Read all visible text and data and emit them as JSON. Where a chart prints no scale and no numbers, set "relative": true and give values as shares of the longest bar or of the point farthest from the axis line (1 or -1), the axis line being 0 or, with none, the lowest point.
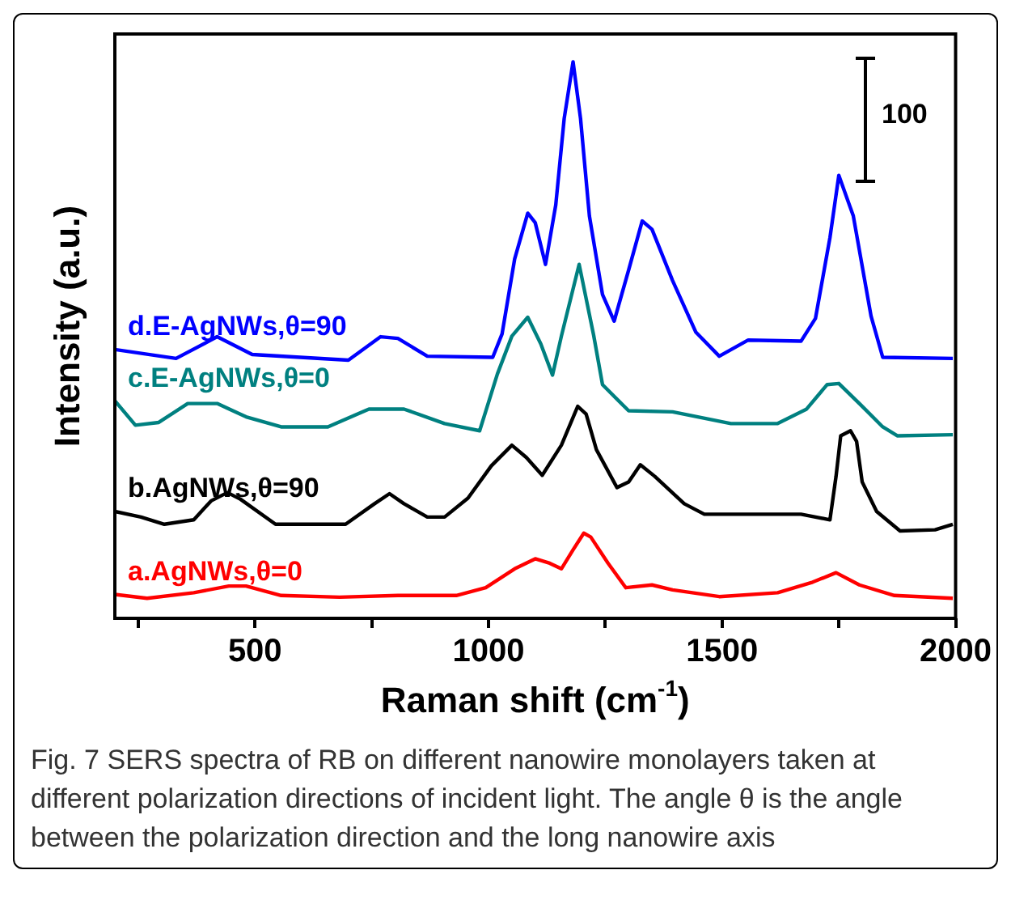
{
  "chart_data": {
    "type": "line",
    "relative": true,
    "xlabel": "Raman shift (cm$^{-1}$)",
    "ylabel": "Intensity (a.u.)",
    "xlim": [
      200,
      2000
    ],
    "xticks": [
      {
        "value": 250,
        "label": null
      },
      500,
      {
        "value": 750,
        "label": null
      },
      1000,
      {
        "value": 1250,
        "label": null
      },
      1500,
      {
        "value": 1750,
        "label": null
      },
      2000
    ],
    "grid": false,
    "legend": false,
    "marker": "none",
    "line_style": "solid",
    "annotations": [
      "100",
      "Fig. 7 SERS spectra of RB on different nanowire monolayers taken at different polarization directions of incident light. The angle θ is the angle between the polarization direction and the long nanowire axis"
    ],
    "series": [
      {
        "name": "a.AgNWs,θ=0",
        "color": "#ff0000",
        "x": [
          200,
          269,
          369,
          444,
          481,
          556,
          681,
          806,
          931,
          994,
          1056,
          1100,
          1131,
          1156,
          1181,
          1204,
          1219,
          1256,
          1294,
          1350,
          1394,
          1494,
          1619,
          1694,
          1744,
          1794,
          1869,
          1994
        ],
        "values": [
          0.043,
          0.036,
          0.046,
          0.058,
          0.058,
          0.041,
          0.038,
          0.041,
          0.041,
          0.055,
          0.089,
          0.107,
          0.099,
          0.089,
          0.123,
          0.153,
          0.146,
          0.099,
          0.055,
          0.06,
          0.051,
          0.039,
          0.046,
          0.065,
          0.082,
          0.06,
          0.041,
          0.036
        ]
      },
      {
        "name": "b.AgNWs,θ=90",
        "color": "#000000",
        "x": [
          200,
          256,
          306,
          369,
          406,
          441,
          469,
          544,
          694,
          756,
          788,
          819,
          869,
          906,
          956,
          1006,
          1050,
          1081,
          1115,
          1156,
          1191,
          1209,
          1231,
          1275,
          1300,
          1325,
          1356,
          1419,
          1462,
          1669,
          1731,
          1744,
          1754,
          1775,
          1788,
          1800,
          1831,
          1881,
          1956,
          1994
        ],
        "values": [
          0.192,
          0.182,
          0.169,
          0.177,
          0.211,
          0.226,
          0.214,
          0.169,
          0.169,
          0.206,
          0.224,
          0.206,
          0.182,
          0.182,
          0.216,
          0.274,
          0.311,
          0.289,
          0.257,
          0.311,
          0.381,
          0.367,
          0.303,
          0.235,
          0.245,
          0.276,
          0.255,
          0.206,
          0.187,
          0.187,
          0.177,
          0.255,
          0.328,
          0.337,
          0.318,
          0.245,
          0.192,
          0.157,
          0.159,
          0.169
        ]
      },
      {
        "name": "c.E-AgNWs,θ=0",
        "color": "#008080",
        "x": [
          200,
          244,
          294,
          356,
          419,
          481,
          556,
          656,
          744,
          819,
          906,
          981,
          1019,
          1050,
          1084,
          1112,
          1137,
          1156,
          1194,
          1225,
          1244,
          1300,
          1394,
          1519,
          1619,
          1681,
          1725,
          1750,
          1794,
          1844,
          1875,
          1994
        ],
        "values": [
          0.391,
          0.347,
          0.352,
          0.386,
          0.386,
          0.362,
          0.344,
          0.344,
          0.376,
          0.376,
          0.35,
          0.337,
          0.439,
          0.507,
          0.541,
          0.493,
          0.437,
          0.507,
          0.636,
          0.509,
          0.42,
          0.373,
          0.371,
          0.35,
          0.35,
          0.376,
          0.42,
          0.422,
          0.386,
          0.344,
          0.328,
          0.33
        ]
      },
      {
        "name": "d.E-AgNWs,θ=90",
        "color": "#0000ff",
        "x": [
          200,
          331,
          419,
          494,
          700,
          769,
          806,
          869,
          1009,
          1029,
          1056,
          1084,
          1100,
          1122,
          1144,
          1162,
          1181,
          1197,
          1216,
          1244,
          1269,
          1300,
          1329,
          1350,
          1394,
          1444,
          1494,
          1556,
          1669,
          1700,
          1731,
          1750,
          1781,
          1819,
          1844,
          1994
        ],
        "values": [
          0.483,
          0.467,
          0.506,
          0.474,
          0.464,
          0.506,
          0.503,
          0.471,
          0.469,
          0.511,
          0.646,
          0.728,
          0.711,
          0.636,
          0.743,
          0.898,
          1.0,
          0.898,
          0.723,
          0.582,
          0.534,
          0.626,
          0.714,
          0.699,
          0.607,
          0.514,
          0.471,
          0.5,
          0.498,
          0.539,
          0.684,
          0.796,
          0.723,
          0.543,
          0.469,
          0.467
        ]
      }
    ]
  }
}
